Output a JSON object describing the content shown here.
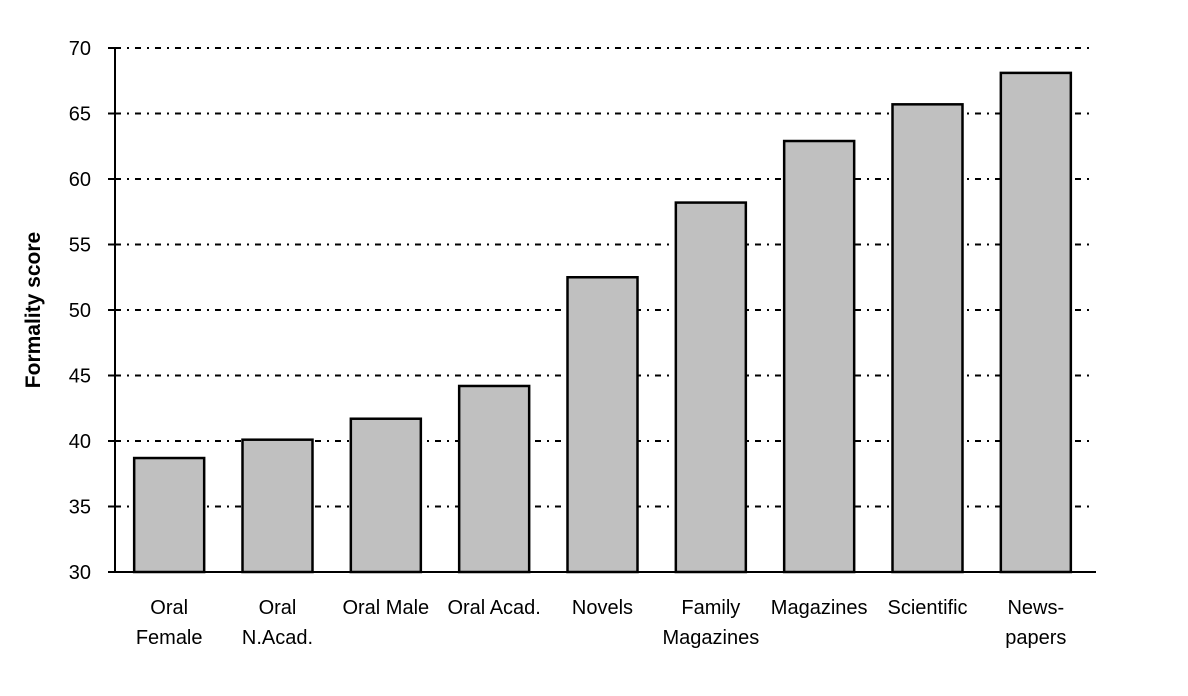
{
  "chart_data": {
    "type": "bar",
    "categories": [
      [
        "Oral",
        "Female"
      ],
      [
        "Oral",
        "N.Acad."
      ],
      [
        "Oral Male"
      ],
      [
        "Oral Acad."
      ],
      [
        "Novels"
      ],
      [
        "Family",
        "Magazines"
      ],
      [
        "Magazines"
      ],
      [
        "Scientific"
      ],
      [
        "News-",
        "papers"
      ]
    ],
    "values": [
      38.7,
      40.1,
      41.7,
      44.2,
      52.5,
      58.2,
      62.9,
      65.7,
      68.1
    ],
    "title": "",
    "xlabel": "",
    "ylabel": "Formality score",
    "ylim": [
      30,
      70
    ],
    "yticks": [
      30,
      35,
      40,
      45,
      50,
      55,
      60,
      65,
      70
    ],
    "grid": true,
    "colors": {
      "bar_fill": "#c0c0c0",
      "bar_stroke": "#000000",
      "grid": "#000000",
      "axis": "#000000"
    }
  }
}
